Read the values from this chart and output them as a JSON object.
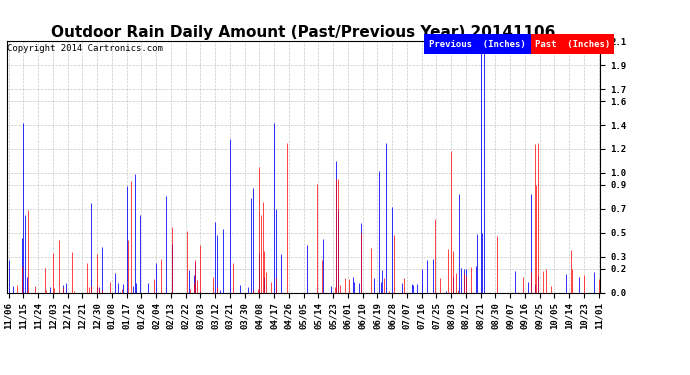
{
  "title": "Outdoor Rain Daily Amount (Past/Previous Year) 20141106",
  "copyright": "Copyright 2014 Cartronics.com",
  "legend_prev": "Previous  (Inches)",
  "legend_past": "Past  (Inches)",
  "ylim": [
    0.0,
    2.1
  ],
  "yticks": [
    0.0,
    0.2,
    0.3,
    0.5,
    0.7,
    0.9,
    1.0,
    1.2,
    1.4,
    1.6,
    1.7,
    1.9,
    2.1
  ],
  "color_prev": "#0000ff",
  "color_past": "#ff0000",
  "bg_color": "#ffffff",
  "grid_color": "#bbbbbb",
  "title_fontsize": 11,
  "tick_fontsize": 6.5,
  "num_points": 361,
  "x_labels": [
    "11/06",
    "11/15",
    "11/24",
    "12/03",
    "12/12",
    "12/21",
    "12/30",
    "01/08",
    "01/17",
    "01/26",
    "02/04",
    "02/13",
    "02/22",
    "03/03",
    "03/12",
    "03/21",
    "03/30",
    "04/08",
    "04/17",
    "04/26",
    "05/05",
    "05/14",
    "05/23",
    "06/01",
    "06/10",
    "06/19",
    "06/28",
    "07/07",
    "07/16",
    "07/25",
    "08/03",
    "08/12",
    "08/21",
    "08/30",
    "09/07",
    "09/16",
    "09/25",
    "10/05",
    "10/14",
    "10/23",
    "11/01"
  ]
}
